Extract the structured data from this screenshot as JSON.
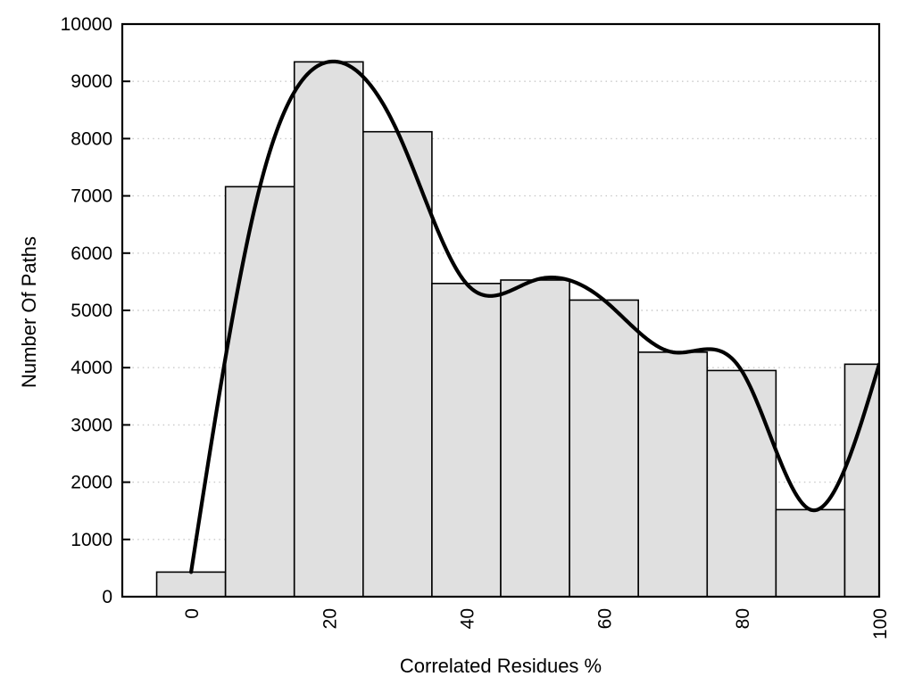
{
  "chart_data": {
    "type": "bar",
    "subtype": "histogram-with-smooth-spline-overlay",
    "title": "",
    "xlabel": "Correlated Residues %",
    "ylabel": "Number Of Paths",
    "bin_centers": [
      0,
      10,
      20,
      30,
      40,
      50,
      60,
      70,
      80,
      90,
      100
    ],
    "bin_width": 10,
    "values": [
      430,
      7160,
      9340,
      8120,
      5470,
      5530,
      5180,
      4270,
      3950,
      1520,
      4060
    ],
    "curve": {
      "name": "smooth-fit-curve",
      "style": "natural-cubic-spline-through-bin-centers",
      "x": [
        0,
        10,
        20,
        30,
        40,
        50,
        60,
        70,
        80,
        90,
        100
      ],
      "y": [
        430,
        7160,
        9340,
        8120,
        5470,
        5530,
        5180,
        4270,
        3950,
        1520,
        4060
      ]
    },
    "xlim": [
      -10,
      100
    ],
    "ylim": [
      0,
      10000
    ],
    "xticks": [
      0,
      20,
      40,
      60,
      80,
      100
    ],
    "yticks": [
      0,
      1000,
      2000,
      3000,
      4000,
      5000,
      6000,
      7000,
      8000,
      9000,
      10000
    ],
    "grid": {
      "horizontal": "dotted",
      "vertical": "none"
    },
    "legend": "none",
    "colors": {
      "background": "#ffffff",
      "bar_fill": "#e0e0e0",
      "bar_border": "#000000",
      "curve": "#000000",
      "grid": "#c9c9c9",
      "axis": "#000000",
      "text": "#000000"
    }
  }
}
